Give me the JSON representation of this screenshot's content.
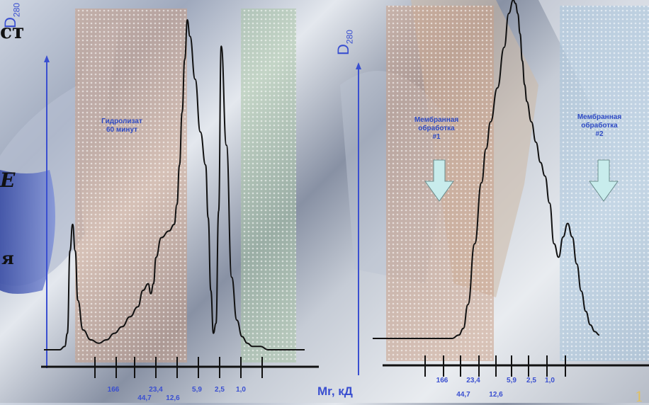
{
  "overlay": {
    "left_text_1": "ст",
    "left_text_2": "Е",
    "left_text_3": "я",
    "corner_digit": "1"
  },
  "chart_data": [
    {
      "type": "line",
      "title": "",
      "ylabel": "D",
      "ylabel_sub": "280",
      "xlabel": "",
      "ylim": [
        0,
        100
      ],
      "x_ticks": [
        "166",
        "23,4",
        "44,7",
        "12,6",
        "5,9",
        "2,5",
        "1,0"
      ],
      "bands": [
        {
          "name": "Гидролизат 60 минут",
          "lines": [
            "Гидролизат",
            "60 минут"
          ],
          "color": "#c9a088"
        },
        {
          "name": "",
          "lines": [],
          "color": "#a9c4a6"
        }
      ],
      "series": [
        {
          "name": "",
          "x": [
            0,
            3,
            6,
            8,
            9,
            10,
            11,
            12,
            13,
            15,
            18,
            21,
            24,
            27,
            30,
            33,
            36,
            38,
            40,
            41,
            42,
            43,
            45,
            48,
            50,
            51,
            52,
            53,
            54,
            55,
            56,
            58,
            60,
            62,
            63,
            64,
            65,
            66,
            67,
            68,
            70,
            72,
            74,
            76,
            78,
            80,
            83,
            86,
            90,
            94,
            98,
            100
          ],
          "y": [
            0,
            0,
            0,
            1,
            5,
            30,
            38,
            30,
            15,
            6,
            3,
            2,
            3,
            5,
            7,
            10,
            13,
            18,
            20,
            17,
            20,
            28,
            34,
            36,
            38,
            44,
            56,
            72,
            88,
            100,
            95,
            82,
            66,
            56,
            40,
            18,
            5,
            8,
            42,
            92,
            62,
            22,
            9,
            4,
            2,
            1,
            1,
            0,
            0,
            0,
            0,
            0
          ]
        }
      ]
    },
    {
      "type": "line",
      "title": "",
      "ylabel": "D",
      "ylabel_sub": "280",
      "xlabel": "Mr, кД",
      "ylim": [
        0,
        100
      ],
      "x_ticks": [
        "166",
        "23,4",
        "44,7",
        "12,6",
        "5,9",
        "2,5",
        "1,0"
      ],
      "bands": [
        {
          "name": "Мембранная обработка #1",
          "lines": [
            "Мембранная",
            "обработка",
            "#1"
          ],
          "color": "#c9a088"
        },
        {
          "name": "Мембранная обработка #2",
          "lines": [
            "Мембранная",
            "обработка",
            "#2"
          ],
          "color": "#a8c4dc"
        }
      ],
      "series": [
        {
          "name": "",
          "x": [
            0,
            10,
            20,
            30,
            35,
            38,
            40,
            42,
            45,
            48,
            50,
            52,
            55,
            58,
            60,
            62,
            63,
            64,
            65,
            66,
            67,
            68,
            70,
            72,
            74,
            76,
            78,
            80,
            82,
            84,
            86,
            88,
            90,
            92,
            94,
            96,
            98,
            100
          ],
          "y": [
            0,
            0,
            0,
            0,
            0,
            1,
            3,
            10,
            28,
            46,
            56,
            64,
            74,
            86,
            96,
            100,
            99,
            96,
            90,
            82,
            75,
            70,
            64,
            58,
            52,
            48,
            40,
            28,
            24,
            30,
            34,
            30,
            22,
            14,
            8,
            4,
            2,
            1
          ]
        }
      ]
    }
  ]
}
